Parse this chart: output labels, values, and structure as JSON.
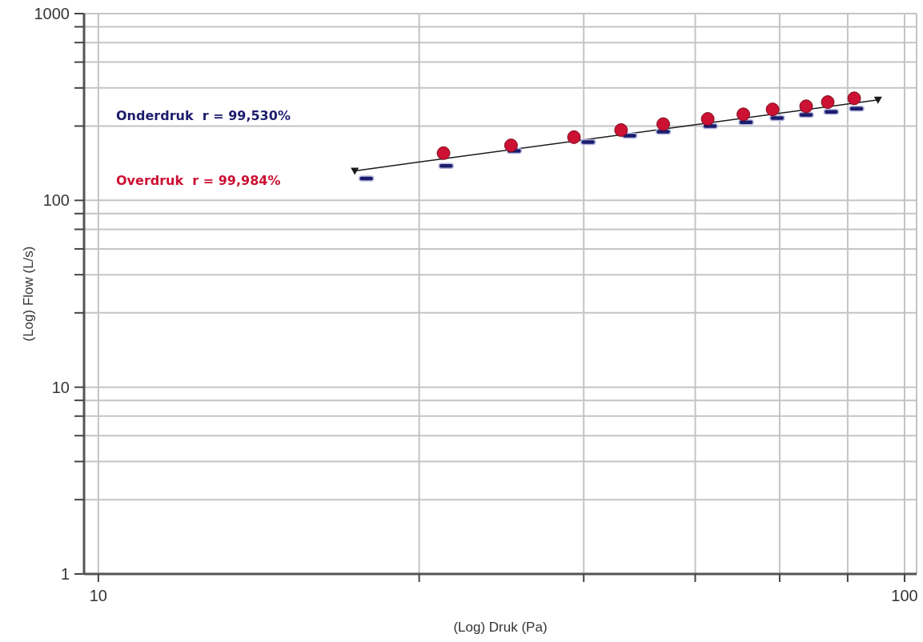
{
  "chart_data": {
    "type": "scatter",
    "xlabel": "(Log) Druk (Pa)",
    "ylabel": "(Log) Flow (L/s)",
    "annotations": [
      "Onderdruk  r = 99,530%",
      "Overdruk  r = 99,984%"
    ],
    "series": [
      {
        "type": "scatter",
        "color": "#1c1c6e",
        "marker": "square",
        "x": [
          21.5,
          27.0,
          32.8,
          40.5,
          45.6,
          50.2,
          57.4,
          63.6,
          69.5,
          75.5,
          81.1,
          87.2
        ],
        "values": [
          131,
          153,
          184,
          205,
          222,
          233,
          250,
          262,
          276,
          287,
          298,
          310
        ]
      },
      {
        "type": "scatter",
        "color": "#cc1133",
        "marker": "circle",
        "x": [
          26.8,
          32.5,
          38.9,
          44.5,
          50.2,
          57.0,
          63.1,
          68.6,
          75.5,
          80.3,
          86.6
        ],
        "values": [
          179,
          197,
          218,
          238,
          256,
          273,
          289,
          307,
          319,
          336,
          352
        ]
      },
      {
        "type": "line",
        "color": "#1a1a1a",
        "marker": "triangle",
        "x": [
          20.8,
          92.7
        ],
        "values": [
          144,
          345
        ]
      }
    ],
    "xlim": [
      9.6,
      103.5
    ],
    "ylim": [
      1,
      1000
    ],
    "xticks": [
      10,
      {
        "value": 25,
        "label": null
      },
      {
        "value": 40,
        "label": null
      },
      {
        "value": 55,
        "label": null
      },
      {
        "value": 70,
        "label": null
      },
      {
        "value": 85,
        "label": null
      },
      100
    ],
    "yticks": [
      1,
      {
        "value": 2.5,
        "label": null
      },
      {
        "value": 4,
        "label": null
      },
      {
        "value": 5.5,
        "label": null
      },
      {
        "value": 7,
        "label": null
      },
      {
        "value": 8.5,
        "label": null
      },
      10,
      {
        "value": 25,
        "label": null
      },
      {
        "value": 40,
        "label": null
      },
      {
        "value": 55,
        "label": null
      },
      {
        "value": 70,
        "label": null
      },
      {
        "value": 85,
        "label": null
      },
      100,
      {
        "value": 250,
        "label": null
      },
      {
        "value": 400,
        "label": null
      },
      {
        "value": 550,
        "label": null
      },
      {
        "value": 700,
        "label": null
      },
      {
        "value": 850,
        "label": null
      },
      1000
    ],
    "log": "xy",
    "grid": true
  }
}
